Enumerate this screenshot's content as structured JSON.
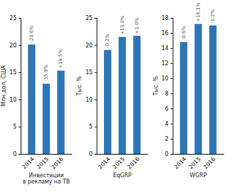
{
  "chart_data": [
    {
      "type": "bar",
      "title": "Инвестиции\nв рекламу на ТВ",
      "ylabel": "Млн дол. США",
      "categories": [
        "2014",
        "2015",
        "2016"
      ],
      "values": [
        20.1,
        12.9,
        15.3
      ],
      "annotations": [
        "-20.6%",
        "-35.9%",
        "+19.5%"
      ],
      "color": "#2E75B6",
      "ylim": [
        0,
        25
      ],
      "yticks": [
        0,
        5,
        10,
        15,
        20,
        25
      ],
      "grid": false
    },
    {
      "type": "bar",
      "title": "EqGRP",
      "ylabel": "Тыс. %",
      "categories": [
        "2014",
        "2015",
        "2016"
      ],
      "values": [
        19.1,
        21.5,
        21.7
      ],
      "annotations": [
        "-0.2%",
        "+13.0%",
        "+1.0%"
      ],
      "color": "#2E75B6",
      "ylim": [
        0,
        25
      ],
      "yticks": [
        0,
        5,
        10,
        15,
        20,
        25
      ],
      "grid": false
    },
    {
      "type": "bar",
      "title": "WGRP",
      "ylabel": "Тыс. %",
      "categories": [
        "2014",
        "2015",
        "2016"
      ],
      "values": [
        14.8,
        17.2,
        17.0
      ],
      "annotations": [
        "-0.6%",
        "+16.1%",
        "-1.2%"
      ],
      "color": "#2E75B6",
      "ylim": [
        0,
        18
      ],
      "yticks": [
        0,
        2,
        4,
        6,
        8,
        10,
        12,
        14,
        16,
        18
      ],
      "grid": false
    }
  ]
}
